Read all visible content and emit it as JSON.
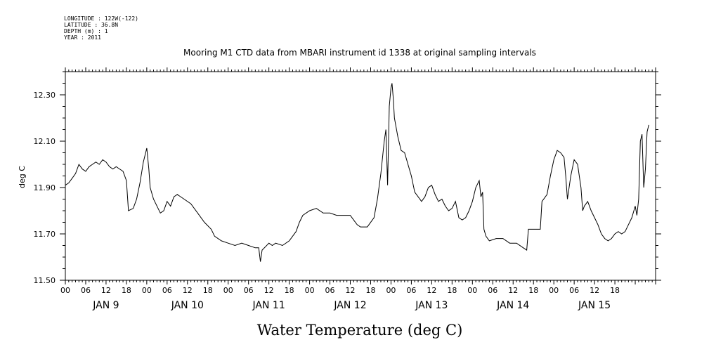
{
  "header": {
    "longitude": "LONGITUDE : 122W(-122)",
    "latitude": "LATITUDE : 36.8N",
    "depth": "DEPTH (m) : 1",
    "year": "YEAR : 2011"
  },
  "chart_data": {
    "type": "line",
    "title": "Mooring M1 CTD data from MBARI instrument id 1338 at original sampling intervals",
    "xlabel": "Water Temperature (deg C)",
    "ylabel": "deg C",
    "ylim": [
      11.5,
      12.4
    ],
    "y_ticks": [
      11.5,
      11.7,
      11.9,
      12.1,
      12.3
    ],
    "y_tick_labels": [
      "11.50",
      "11.70",
      "11.90",
      "12.10",
      "12.30"
    ],
    "x_hour_labels": [
      "00",
      "06",
      "12",
      "18",
      "00",
      "06",
      "12",
      "18",
      "00",
      "06",
      "12",
      "18",
      "00",
      "06",
      "12",
      "18",
      "00",
      "06",
      "12",
      "18",
      "00",
      "06",
      "12",
      "18",
      "00",
      "06",
      "12",
      "18"
    ],
    "day_labels": [
      "JAN  9",
      "JAN 10",
      "JAN 11",
      "JAN 12",
      "JAN 13",
      "JAN 14",
      "JAN 15"
    ],
    "grid": false,
    "series": [
      {
        "values_hours_since_jan9_00": [
          [
            0,
            11.91
          ],
          [
            1,
            11.92
          ],
          [
            2,
            11.94
          ],
          [
            3,
            11.96
          ],
          [
            4,
            12.0
          ],
          [
            5,
            11.98
          ],
          [
            6,
            11.97
          ],
          [
            7,
            11.99
          ],
          [
            8,
            12.0
          ],
          [
            9,
            12.01
          ],
          [
            10,
            12.0
          ],
          [
            11,
            12.02
          ],
          [
            12,
            12.01
          ],
          [
            13,
            11.99
          ],
          [
            14,
            11.98
          ],
          [
            15,
            11.99
          ],
          [
            16,
            11.98
          ],
          [
            17,
            11.97
          ],
          [
            18,
            11.93
          ],
          [
            18.6,
            11.8
          ],
          [
            20,
            11.81
          ],
          [
            21,
            11.85
          ],
          [
            22,
            11.92
          ],
          [
            23,
            12.01
          ],
          [
            24,
            12.07
          ],
          [
            24.6,
            11.98
          ],
          [
            25,
            11.9
          ],
          [
            26,
            11.85
          ],
          [
            28,
            11.79
          ],
          [
            29,
            11.8
          ],
          [
            30,
            11.84
          ],
          [
            31,
            11.82
          ],
          [
            32,
            11.86
          ],
          [
            33,
            11.87
          ],
          [
            35,
            11.85
          ],
          [
            37,
            11.83
          ],
          [
            39,
            11.79
          ],
          [
            41,
            11.75
          ],
          [
            43,
            11.72
          ],
          [
            44,
            11.69
          ],
          [
            46,
            11.67
          ],
          [
            48,
            11.66
          ],
          [
            50,
            11.65
          ],
          [
            52,
            11.66
          ],
          [
            54,
            11.65
          ],
          [
            56,
            11.64
          ],
          [
            57,
            11.64
          ],
          [
            57.5,
            11.58
          ],
          [
            58,
            11.63
          ],
          [
            60,
            11.66
          ],
          [
            61,
            11.65
          ],
          [
            62,
            11.66
          ],
          [
            64,
            11.65
          ],
          [
            66,
            11.67
          ],
          [
            68,
            11.71
          ],
          [
            69,
            11.75
          ],
          [
            70,
            11.78
          ],
          [
            72,
            11.8
          ],
          [
            74,
            11.81
          ],
          [
            76,
            11.79
          ],
          [
            78,
            11.79
          ],
          [
            80,
            11.78
          ],
          [
            82,
            11.78
          ],
          [
            84,
            11.78
          ],
          [
            85,
            11.76
          ],
          [
            86,
            11.74
          ],
          [
            87,
            11.73
          ],
          [
            89,
            11.73
          ],
          [
            91,
            11.77
          ],
          [
            92,
            11.85
          ],
          [
            93,
            11.96
          ],
          [
            94,
            12.1
          ],
          [
            94.5,
            12.15
          ],
          [
            95,
            11.91
          ],
          [
            95.5,
            12.25
          ],
          [
            96,
            12.33
          ],
          [
            96.3,
            12.35
          ],
          [
            96.7,
            12.28
          ],
          [
            97,
            12.2
          ],
          [
            98,
            12.12
          ],
          [
            99,
            12.06
          ],
          [
            100,
            12.05
          ],
          [
            101,
            12.0
          ],
          [
            102,
            11.95
          ],
          [
            103,
            11.88
          ],
          [
            104,
            11.86
          ],
          [
            105,
            11.84
          ],
          [
            106,
            11.86
          ],
          [
            107,
            11.9
          ],
          [
            108,
            11.91
          ],
          [
            109,
            11.87
          ],
          [
            110,
            11.84
          ],
          [
            111,
            11.85
          ],
          [
            112,
            11.82
          ],
          [
            113,
            11.8
          ],
          [
            114,
            11.81
          ],
          [
            115,
            11.84
          ],
          [
            116,
            11.77
          ],
          [
            117,
            11.76
          ],
          [
            118,
            11.77
          ],
          [
            119,
            11.8
          ],
          [
            120,
            11.84
          ],
          [
            121,
            11.9
          ],
          [
            122,
            11.93
          ],
          [
            122.5,
            11.86
          ],
          [
            123,
            11.88
          ],
          [
            123.4,
            11.72
          ],
          [
            124,
            11.69
          ],
          [
            125,
            11.67
          ],
          [
            127,
            11.68
          ],
          [
            129,
            11.68
          ],
          [
            131,
            11.66
          ],
          [
            133,
            11.66
          ],
          [
            135,
            11.64
          ],
          [
            136,
            11.63
          ],
          [
            136.5,
            11.72
          ],
          [
            138,
            11.72
          ],
          [
            140,
            11.72
          ],
          [
            140.5,
            11.84
          ],
          [
            142,
            11.87
          ],
          [
            143,
            11.95
          ],
          [
            144,
            12.02
          ],
          [
            145,
            12.06
          ],
          [
            146,
            12.05
          ],
          [
            147,
            12.03
          ],
          [
            147.5,
            11.95
          ],
          [
            148,
            11.85
          ],
          [
            149,
            11.95
          ],
          [
            150,
            12.02
          ],
          [
            151,
            12.0
          ],
          [
            152,
            11.9
          ],
          [
            152.5,
            11.8
          ],
          [
            153,
            11.82
          ],
          [
            154,
            11.84
          ],
          [
            155,
            11.8
          ],
          [
            156,
            11.77
          ],
          [
            157,
            11.74
          ],
          [
            158,
            11.7
          ],
          [
            159,
            11.68
          ],
          [
            160,
            11.67
          ],
          [
            161,
            11.68
          ],
          [
            162,
            11.7
          ],
          [
            163,
            11.71
          ],
          [
            164,
            11.7
          ],
          [
            165,
            11.71
          ],
          [
            166,
            11.74
          ],
          [
            167,
            11.77
          ],
          [
            168,
            11.82
          ],
          [
            168.5,
            11.78
          ],
          [
            169,
            11.85
          ],
          [
            169.5,
            12.1
          ],
          [
            170,
            12.13
          ],
          [
            170.5,
            11.9
          ],
          [
            171,
            11.98
          ],
          [
            171.5,
            12.14
          ],
          [
            172,
            12.17
          ]
        ]
      }
    ]
  }
}
